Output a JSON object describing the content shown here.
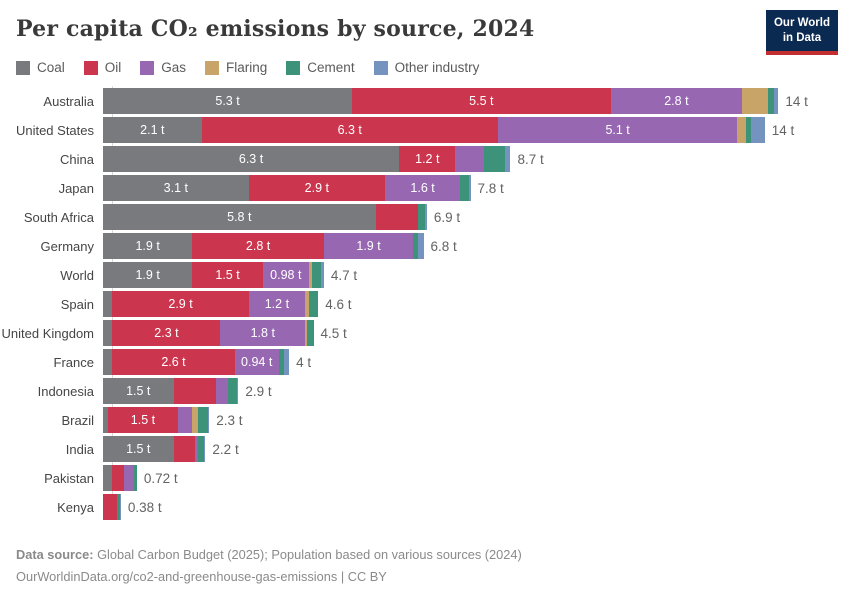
{
  "header": {
    "title": "Per capita CO₂ emissions by source, 2024",
    "logo": {
      "line1": "Our World",
      "line2": "in Data"
    }
  },
  "chart_data": {
    "type": "bar",
    "orientation": "horizontal-stacked",
    "title": "Per capita CO₂ emissions by source, 2024",
    "unit": "tonnes per person",
    "xmax": 14.4,
    "grid": false,
    "legend_position": "top",
    "series": [
      {
        "name": "Coal",
        "color": "#797a7e"
      },
      {
        "name": "Oil",
        "color": "#cb364e"
      },
      {
        "name": "Gas",
        "color": "#9768b1"
      },
      {
        "name": "Flaring",
        "color": "#c9a468"
      },
      {
        "name": "Cement",
        "color": "#3c9379"
      },
      {
        "name": "Other industry",
        "color": "#7593bf"
      }
    ],
    "rows": [
      {
        "name": "Australia",
        "total": "14 t",
        "segments": [
          {
            "series": "Coal",
            "value": 5.3,
            "label": "5.3 t"
          },
          {
            "series": "Oil",
            "value": 5.5,
            "label": "5.5 t"
          },
          {
            "series": "Gas",
            "value": 2.8,
            "label": "2.8 t"
          },
          {
            "series": "Flaring",
            "value": 0.55
          },
          {
            "series": "Cement",
            "value": 0.12
          },
          {
            "series": "Other industry",
            "value": 0.1
          }
        ]
      },
      {
        "name": "United States",
        "total": "14 t",
        "segments": [
          {
            "series": "Coal",
            "value": 2.1,
            "label": "2.1 t"
          },
          {
            "series": "Oil",
            "value": 6.3,
            "label": "6.3 t"
          },
          {
            "series": "Gas",
            "value": 5.1,
            "label": "5.1 t"
          },
          {
            "series": "Flaring",
            "value": 0.18
          },
          {
            "series": "Cement",
            "value": 0.1
          },
          {
            "series": "Other industry",
            "value": 0.3
          }
        ]
      },
      {
        "name": "China",
        "total": "8.7 t",
        "segments": [
          {
            "series": "Coal",
            "value": 6.3,
            "label": "6.3 t"
          },
          {
            "series": "Oil",
            "value": 1.2,
            "label": "1.2 t"
          },
          {
            "series": "Gas",
            "value": 0.6
          },
          {
            "series": "Cement",
            "value": 0.45
          },
          {
            "series": "Other industry",
            "value": 0.12
          }
        ]
      },
      {
        "name": "Japan",
        "total": "7.8 t",
        "segments": [
          {
            "series": "Coal",
            "value": 3.1,
            "label": "3.1 t"
          },
          {
            "series": "Oil",
            "value": 2.9,
            "label": "2.9 t"
          },
          {
            "series": "Gas",
            "value": 1.6,
            "label": "1.6 t"
          },
          {
            "series": "Cement",
            "value": 0.18
          },
          {
            "series": "Other industry",
            "value": 0.04
          }
        ]
      },
      {
        "name": "South Africa",
        "total": "6.9 t",
        "segments": [
          {
            "series": "Coal",
            "value": 5.8,
            "label": "5.8 t"
          },
          {
            "series": "Oil",
            "value": 0.9
          },
          {
            "series": "Cement",
            "value": 0.15
          },
          {
            "series": "Other industry",
            "value": 0.04
          }
        ]
      },
      {
        "name": "Germany",
        "total": "6.8 t",
        "segments": [
          {
            "series": "Coal",
            "value": 1.9,
            "label": "1.9 t"
          },
          {
            "series": "Oil",
            "value": 2.8,
            "label": "2.8 t"
          },
          {
            "series": "Gas",
            "value": 1.9,
            "label": "1.9 t"
          },
          {
            "series": "Cement",
            "value": 0.1
          },
          {
            "series": "Other industry",
            "value": 0.12
          }
        ]
      },
      {
        "name": "World",
        "total": "4.7 t",
        "segments": [
          {
            "series": "Coal",
            "value": 1.9,
            "label": "1.9 t"
          },
          {
            "series": "Oil",
            "value": 1.5,
            "label": "1.5 t"
          },
          {
            "series": "Gas",
            "value": 0.98,
            "label": "0.98 t"
          },
          {
            "series": "Flaring",
            "value": 0.06
          },
          {
            "series": "Cement",
            "value": 0.2
          },
          {
            "series": "Other industry",
            "value": 0.06
          }
        ]
      },
      {
        "name": "Spain",
        "total": "4.6 t",
        "segments": [
          {
            "series": "Coal",
            "value": 0.2
          },
          {
            "series": "Oil",
            "value": 2.9,
            "label": "2.9 t"
          },
          {
            "series": "Gas",
            "value": 1.2,
            "label": "1.2 t"
          },
          {
            "series": "Flaring",
            "value": 0.08
          },
          {
            "series": "Cement",
            "value": 0.2
          }
        ]
      },
      {
        "name": "United Kingdom",
        "total": "4.5 t",
        "segments": [
          {
            "series": "Coal",
            "value": 0.2
          },
          {
            "series": "Oil",
            "value": 2.3,
            "label": "2.3 t"
          },
          {
            "series": "Gas",
            "value": 1.8,
            "label": "1.8 t"
          },
          {
            "series": "Flaring",
            "value": 0.05
          },
          {
            "series": "Cement",
            "value": 0.13
          }
        ]
      },
      {
        "name": "France",
        "total": "4 t",
        "segments": [
          {
            "series": "Coal",
            "value": 0.2
          },
          {
            "series": "Oil",
            "value": 2.6,
            "label": "2.6 t"
          },
          {
            "series": "Gas",
            "value": 0.94,
            "label": "0.94 t"
          },
          {
            "series": "Cement",
            "value": 0.12
          },
          {
            "series": "Other industry",
            "value": 0.1
          }
        ]
      },
      {
        "name": "Indonesia",
        "total": "2.9 t",
        "segments": [
          {
            "series": "Coal",
            "value": 1.5,
            "label": "1.5 t"
          },
          {
            "series": "Oil",
            "value": 0.9
          },
          {
            "series": "Gas",
            "value": 0.25
          },
          {
            "series": "Cement",
            "value": 0.2
          },
          {
            "series": "Other industry",
            "value": 0.03
          }
        ]
      },
      {
        "name": "Brazil",
        "total": "2.3 t",
        "segments": [
          {
            "series": "Coal",
            "value": 0.1
          },
          {
            "series": "Oil",
            "value": 1.5,
            "label": "1.5 t"
          },
          {
            "series": "Gas",
            "value": 0.3
          },
          {
            "series": "Flaring",
            "value": 0.13
          },
          {
            "series": "Cement",
            "value": 0.2
          },
          {
            "series": "Other industry",
            "value": 0.03
          }
        ]
      },
      {
        "name": "India",
        "total": "2.2 t",
        "segments": [
          {
            "series": "Coal",
            "value": 1.5,
            "label": "1.5 t"
          },
          {
            "series": "Oil",
            "value": 0.45
          },
          {
            "series": "Gas",
            "value": 0.08
          },
          {
            "series": "Cement",
            "value": 0.12
          },
          {
            "series": "Other industry",
            "value": 0.03
          }
        ]
      },
      {
        "name": "Pakistan",
        "total": "0.72 t",
        "segments": [
          {
            "series": "Coal",
            "value": 0.2
          },
          {
            "series": "Oil",
            "value": 0.25
          },
          {
            "series": "Gas",
            "value": 0.22
          },
          {
            "series": "Cement",
            "value": 0.05
          }
        ]
      },
      {
        "name": "Kenya",
        "total": "0.38 t",
        "segments": [
          {
            "series": "Oil",
            "value": 0.3
          },
          {
            "series": "Cement",
            "value": 0.06
          },
          {
            "series": "Other industry",
            "value": 0.02
          }
        ]
      }
    ]
  },
  "footer": {
    "datasource_label": "Data source:",
    "datasource_text": " Global Carbon Budget (2025); Population based on various sources (2024)",
    "link": "OurWorldinData.org/co2-and-greenhouse-gas-emissions",
    "separator": " | ",
    "license": "CC BY"
  }
}
